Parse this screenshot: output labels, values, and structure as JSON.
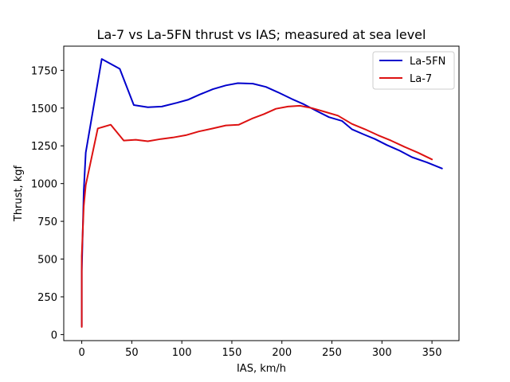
{
  "chart_data": {
    "type": "line",
    "title": "La-7 vs La-5FN thrust vs IAS; measured at sea level",
    "xlabel": "IAS, km/h",
    "ylabel": "Thrust, kgf",
    "xlim": [
      -18,
      377
    ],
    "ylim": [
      -40,
      1910
    ],
    "xticks": [
      0,
      50,
      100,
      150,
      200,
      250,
      300,
      350
    ],
    "yticks": [
      0,
      250,
      500,
      750,
      1000,
      1250,
      1500,
      1750
    ],
    "grid": false,
    "legend_position": "top-right",
    "series": [
      {
        "name": "La-5FN",
        "color": "#0000cc",
        "x": [
          0,
          0,
          0,
          2,
          4,
          20,
          38,
          52,
          66,
          80,
          95,
          106,
          118,
          131,
          144,
          156,
          171,
          184,
          196,
          210,
          222,
          235,
          247,
          260,
          270,
          282,
          293,
          305,
          317,
          330,
          345,
          360
        ],
        "y": [
          55,
          150,
          420,
          950,
          1205,
          1825,
          1760,
          1520,
          1505,
          1510,
          1535,
          1555,
          1590,
          1625,
          1650,
          1665,
          1662,
          1640,
          1605,
          1560,
          1525,
          1480,
          1440,
          1415,
          1360,
          1325,
          1295,
          1255,
          1220,
          1175,
          1140,
          1100
        ]
      },
      {
        "name": "La-7",
        "color": "#dd1111",
        "x": [
          0,
          0,
          0,
          2,
          4,
          16,
          29,
          42,
          54,
          66,
          79,
          91,
          104,
          117,
          131,
          144,
          157,
          170,
          182,
          194,
          206,
          218,
          230,
          243,
          256,
          270,
          283,
          296,
          309,
          322,
          336,
          350
        ],
        "y": [
          50,
          200,
          520,
          850,
          990,
          1365,
          1390,
          1285,
          1290,
          1280,
          1295,
          1305,
          1320,
          1345,
          1365,
          1385,
          1390,
          1430,
          1460,
          1495,
          1510,
          1515,
          1500,
          1475,
          1450,
          1395,
          1360,
          1320,
          1285,
          1245,
          1205,
          1160
        ]
      }
    ]
  }
}
